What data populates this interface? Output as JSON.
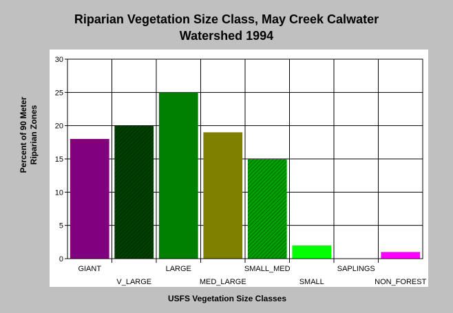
{
  "chart_data": {
    "type": "bar",
    "title_line1": "Riparian Vegetation Size Class, May Creek Calwater",
    "title_line2": "Watershed 1994",
    "xlabel": "USFS Vegetation Size Classes",
    "ylabel_line1": "Percent of 90 Meter",
    "ylabel_line2": "Riparian Zones",
    "categories": [
      "GIANT",
      "V_LARGE",
      "LARGE",
      "MED_LARGE",
      "SMALL_MED",
      "SMALL",
      "SAPLINGS",
      "NON_FOREST"
    ],
    "values": [
      18,
      20,
      25,
      19,
      15,
      2,
      0,
      1
    ],
    "colors": [
      "#800080",
      "#004000",
      "#008000",
      "#808000",
      "#00a000",
      "#00ff00",
      "#008080",
      "#ff00ff"
    ],
    "patterns": [
      "solid",
      "hatch",
      "solid",
      "solid",
      "hatch",
      "solid",
      "solid",
      "solid"
    ],
    "ylim": [
      0,
      30
    ],
    "yticks": [
      0,
      5,
      10,
      15,
      20,
      25,
      30
    ],
    "grid": true,
    "legend": "none"
  }
}
